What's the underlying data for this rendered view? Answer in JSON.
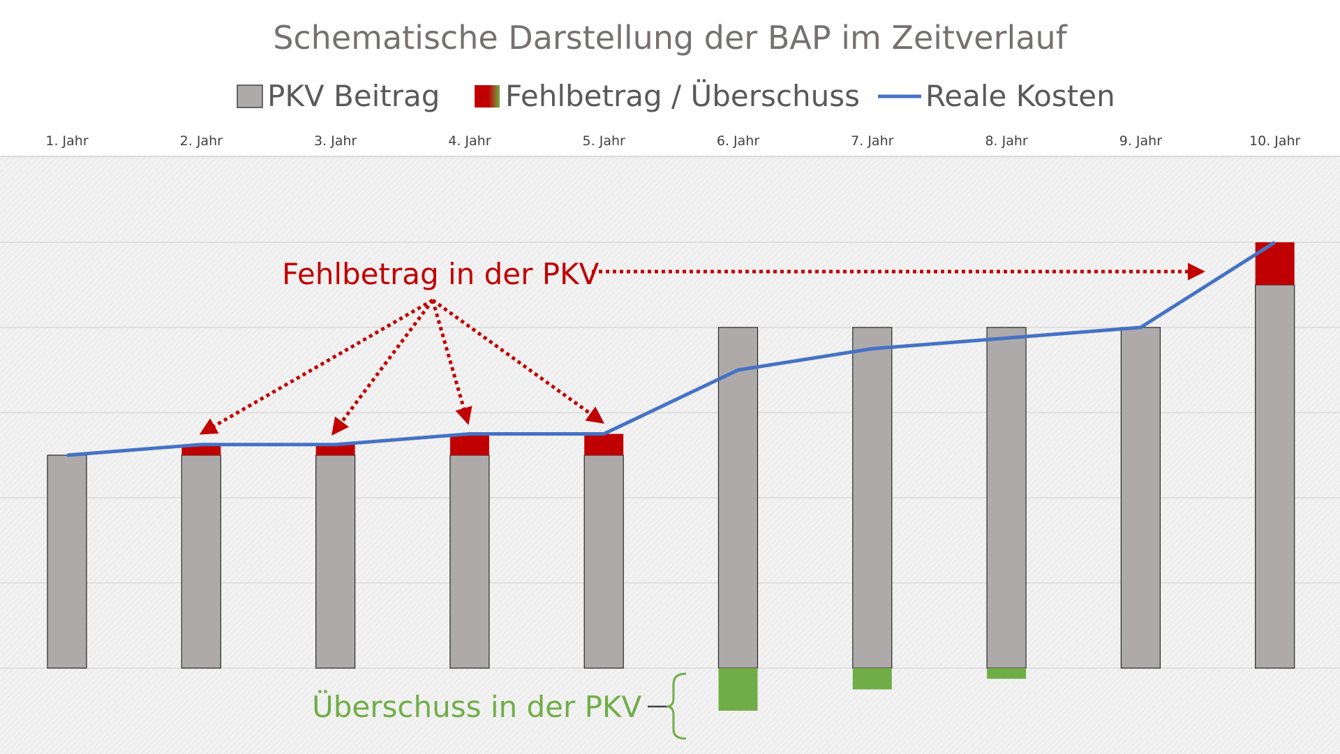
{
  "chart_data": {
    "type": "bar",
    "title": "Schematische Darstellung der BAP im Zeitverlauf",
    "categories": [
      "1. Jahr",
      "2. Jahr",
      "3. Jahr",
      "4. Jahr",
      "5. Jahr",
      "6. Jahr",
      "7. Jahr",
      "8. Jahr",
      "9. Jahr",
      "10. Jahr"
    ],
    "series": [
      {
        "name": "PKV Beitrag",
        "kind": "bar",
        "color": "#aeaaaa",
        "values": [
          5,
          5,
          5,
          5,
          5,
          8,
          8,
          8,
          8,
          9
        ]
      },
      {
        "name": "Fehlbetrag / Überschuss",
        "kind": "stacked-bar",
        "color_deficit": "#c00000",
        "color_surplus": "#70ad47",
        "values": [
          0,
          0.25,
          0.25,
          0.5,
          0.5,
          -1,
          -0.5,
          -0.25,
          0,
          1
        ]
      },
      {
        "name": "Reale Kosten",
        "kind": "line",
        "color": "#4472c4",
        "values": [
          5,
          5.25,
          5.25,
          5.5,
          5.5,
          7,
          7.5,
          7.75,
          8,
          10
        ]
      }
    ],
    "ylim": [
      -2,
      12
    ],
    "ytick_step": 2,
    "grid": true,
    "y_axis_labels_shown": false,
    "legend_position": "top",
    "xaxis_position": "top",
    "annotations": {
      "deficit_label": "Fehlbetrag in der PKV",
      "deficit_targets": [
        "2. Jahr",
        "3. Jahr",
        "4. Jahr",
        "5. Jahr",
        "10. Jahr"
      ],
      "surplus_label": "Überschuss in der PKV",
      "surplus_targets": [
        "6. Jahr",
        "7. Jahr",
        "8. Jahr"
      ]
    }
  }
}
